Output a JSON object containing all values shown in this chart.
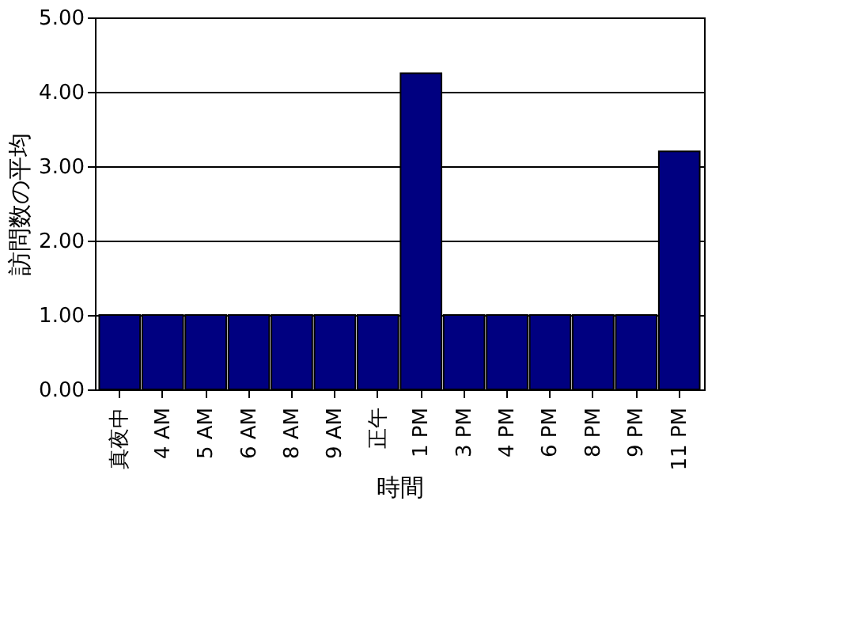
{
  "chart_data": {
    "type": "bar",
    "xlabel": "時間",
    "ylabel": "訪問数の平均",
    "categories": [
      "真夜中",
      "4 AM",
      "5 AM",
      "6 AM",
      "8 AM",
      "9 AM",
      "正午",
      "1 PM",
      "3 PM",
      "4 PM",
      "6 PM",
      "8 PM",
      "9 PM",
      "11 PM"
    ],
    "values": [
      1,
      1,
      1,
      1,
      1,
      1,
      1,
      4.25,
      1,
      1,
      1,
      1,
      1,
      3.2
    ],
    "color": "#000080",
    "ylim": [
      0,
      5
    ],
    "yticks": [
      {
        "value": 0,
        "label": "0.00"
      },
      {
        "value": 1,
        "label": "1.00"
      },
      {
        "value": 2,
        "label": "2.00"
      },
      {
        "value": 3,
        "label": "3.00"
      },
      {
        "value": 4,
        "label": "4.00"
      },
      {
        "value": 5,
        "label": "5.00"
      }
    ],
    "grid": "y"
  }
}
